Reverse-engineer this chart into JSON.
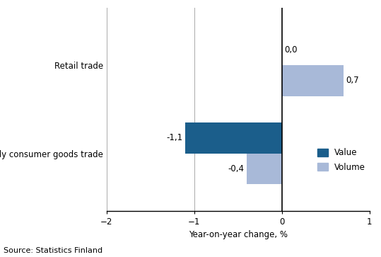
{
  "categories": [
    "Daily consumer goods trade",
    "Retail trade"
  ],
  "value_data": [
    -1.1,
    0.0
  ],
  "volume_data": [
    -0.4,
    0.7
  ],
  "value_color": "#1B5E8B",
  "volume_color": "#A8B9D8",
  "xlabel": "Year-on-year change, %",
  "xlim": [
    -2,
    1
  ],
  "xticks": [
    -2,
    -1,
    0,
    1
  ],
  "source_text": "Source: Statistics Finland",
  "legend_value": "Value",
  "legend_volume": "Volume",
  "bar_labels": {
    "value_daily": "-1,1",
    "volume_daily": "-0,4",
    "value_retail": "0,0",
    "volume_retail": "0,7"
  },
  "bar_height": 0.35,
  "bar_gap": 0.35
}
